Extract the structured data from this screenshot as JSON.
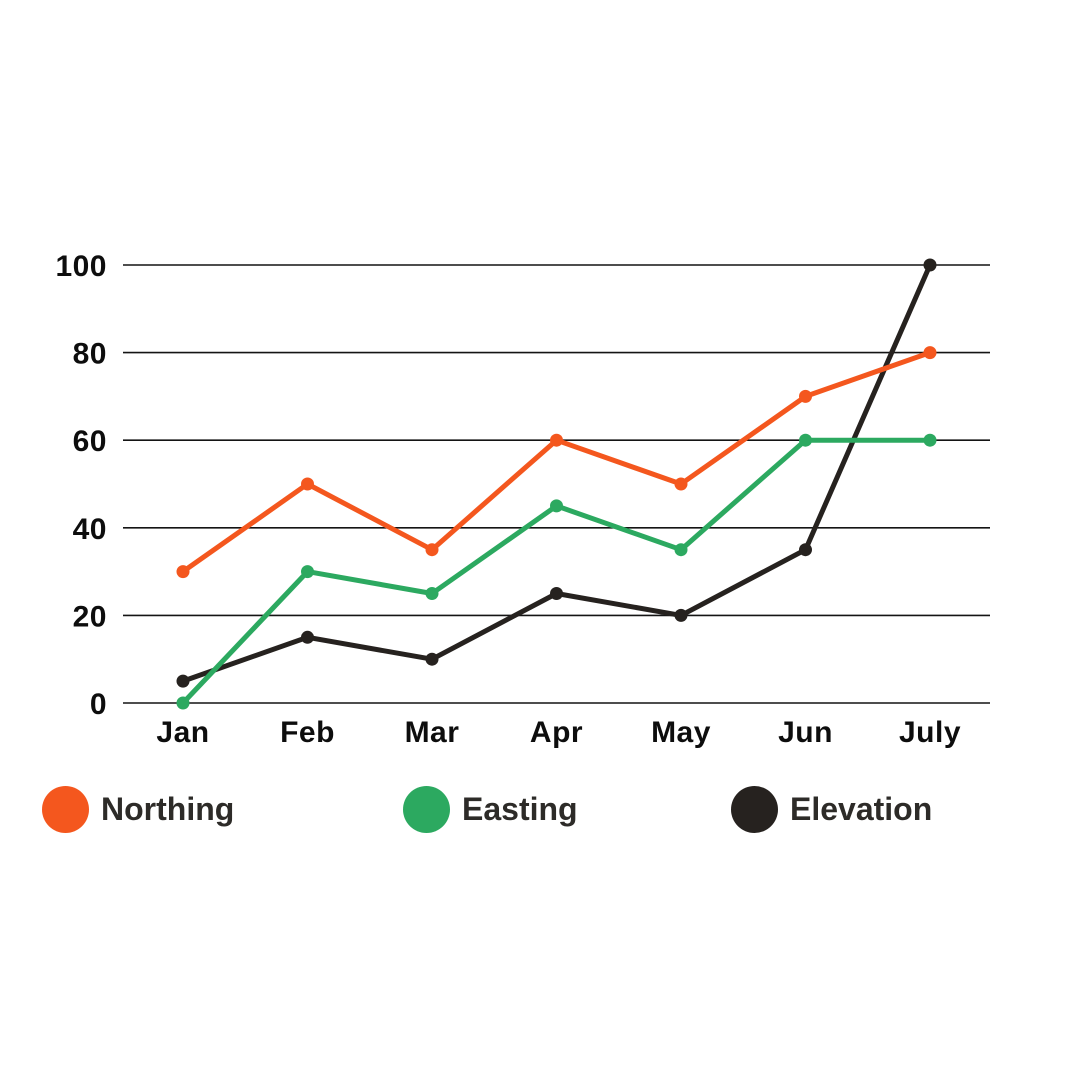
{
  "chart_data": {
    "type": "line",
    "title": "",
    "xlabel": "",
    "ylabel": "",
    "categories": [
      "Jan",
      "Feb",
      "Mar",
      "Apr",
      "May",
      "Jun",
      "July"
    ],
    "series": [
      {
        "name": "Northing",
        "color": "#f4571e",
        "values": [
          30,
          50,
          35,
          60,
          50,
          70,
          80
        ]
      },
      {
        "name": "Easting",
        "color": "#2ca960",
        "values": [
          0,
          30,
          25,
          45,
          35,
          60,
          60
        ]
      },
      {
        "name": "Elevation",
        "color": "#26221f",
        "values": [
          5,
          15,
          10,
          25,
          20,
          35,
          100
        ]
      }
    ],
    "yticks": [
      0,
      20,
      40,
      60,
      80,
      100
    ],
    "ylim": [
      0,
      100
    ],
    "grid": "horizontal-only",
    "legend_position": "bottom-left",
    "markers": true
  },
  "colors": {
    "background": "#ffffff",
    "gridline": "#141414",
    "tick_label": "#0d0d0d",
    "legend_text": "#2d2b28"
  }
}
